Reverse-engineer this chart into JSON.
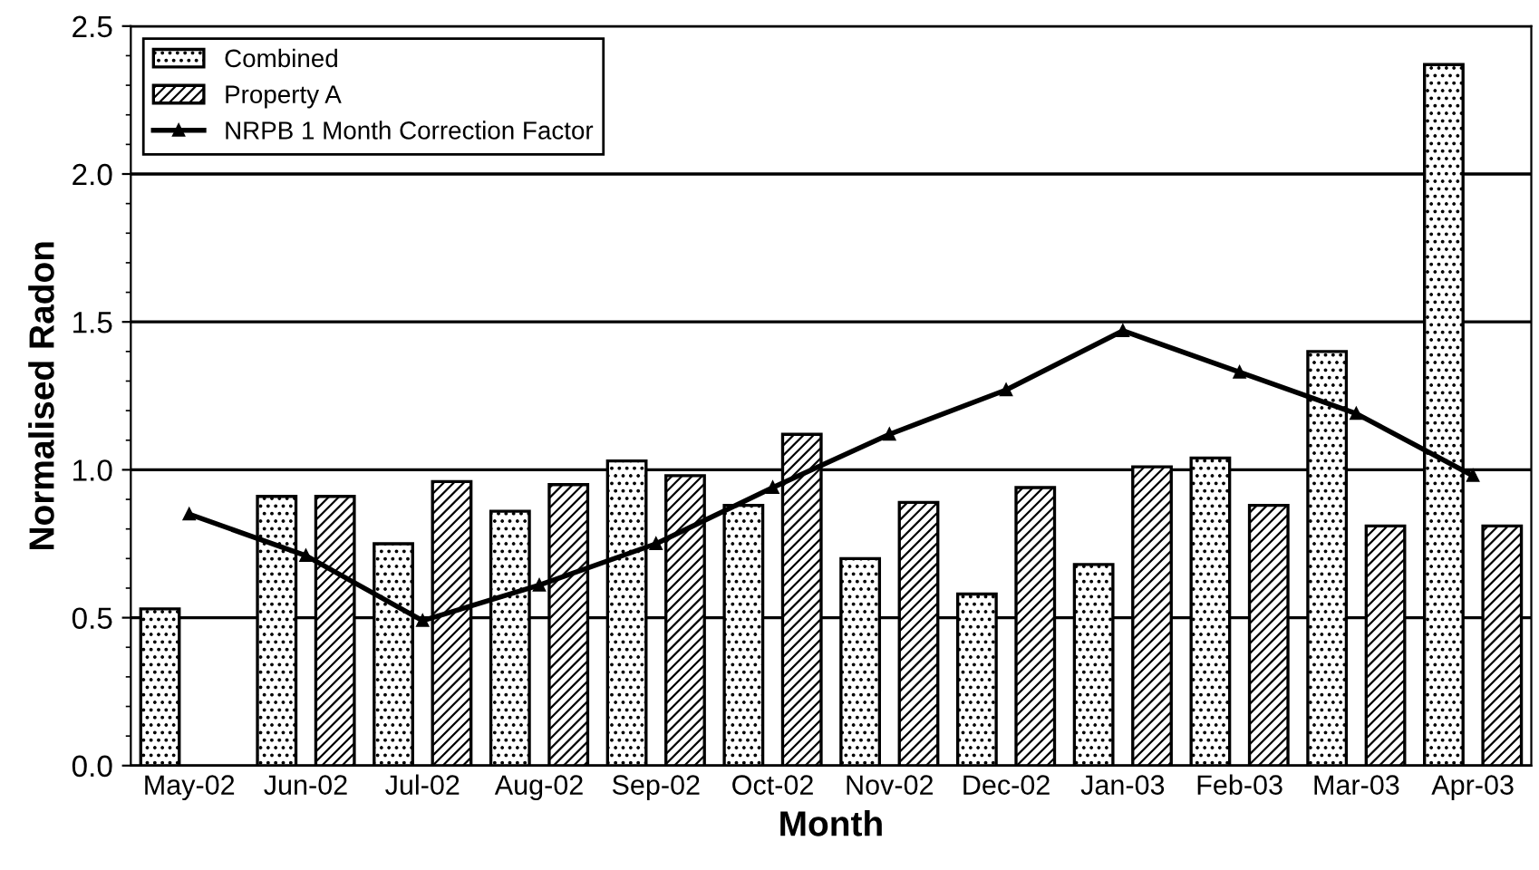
{
  "chart_data": {
    "type": "bar",
    "xlabel": "Month",
    "ylabel": "Normalised Radon",
    "categories": [
      "May-02",
      "Jun-02",
      "Jul-02",
      "Aug-02",
      "Sep-02",
      "Oct-02",
      "Nov-02",
      "Dec-02",
      "Jan-03",
      "Feb-03",
      "Mar-03",
      "Apr-03"
    ],
    "series": [
      {
        "name": "Combined",
        "color": "#000000",
        "values": [
          0.53,
          0.91,
          0.75,
          0.86,
          1.03,
          0.88,
          0.7,
          0.58,
          0.68,
          1.04,
          1.4,
          2.37
        ]
      },
      {
        "name": "Property A",
        "color": "#000000",
        "values": [
          null,
          0.91,
          0.96,
          0.95,
          0.98,
          1.12,
          0.89,
          0.94,
          1.01,
          0.88,
          0.81,
          0.81
        ]
      },
      {
        "name": "NRPB 1 Month Correction Factor",
        "type": "line",
        "color": "#000000",
        "marker": "triangle",
        "line_style": "solid",
        "values": [
          0.85,
          0.71,
          0.49,
          0.61,
          0.75,
          0.94,
          1.12,
          1.27,
          1.47,
          1.33,
          1.19,
          0.98
        ]
      }
    ],
    "ylim": [
      0,
      2.5
    ],
    "yticks": [
      {
        "value": 0,
        "label": "0.0"
      },
      0.5,
      {
        "value": 1,
        "label": "1.0"
      },
      1.5,
      {
        "value": 2,
        "label": "2.0"
      },
      2.5
    ],
    "grid": "y",
    "legend": "top left"
  }
}
